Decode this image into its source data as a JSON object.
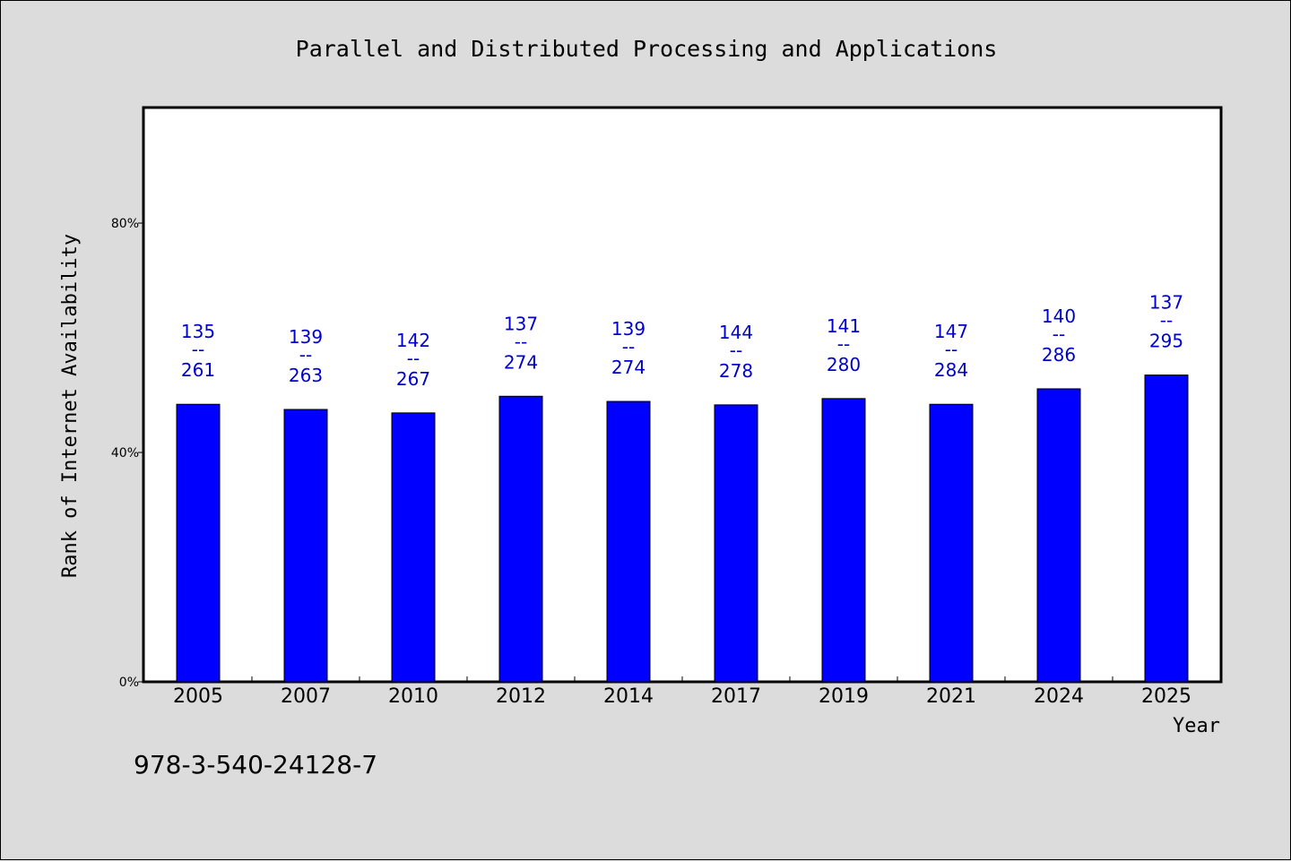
{
  "chart_data": {
    "type": "bar",
    "title": "Parallel and Distributed Processing and Applications",
    "xlabel": "Year",
    "ylabel": "Rank of Internet Availability",
    "ylim": [
      0,
      100
    ],
    "yticks": [
      {
        "value": 0,
        "label": "0%"
      },
      {
        "value": 40,
        "label": "40%"
      },
      {
        "value": 80,
        "label": "80%"
      }
    ],
    "categories": [
      "2005",
      "2007",
      "2010",
      "2012",
      "2014",
      "2017",
      "2019",
      "2021",
      "2024",
      "2025"
    ],
    "values": [
      48.4,
      47.5,
      46.9,
      49.8,
      48.9,
      48.3,
      49.4,
      48.4,
      51.1,
      53.5
    ],
    "data_labels": [
      {
        "rank": "135",
        "sep": "--",
        "total": "261"
      },
      {
        "rank": "139",
        "sep": "--",
        "total": "263"
      },
      {
        "rank": "142",
        "sep": "--",
        "total": "267"
      },
      {
        "rank": "137",
        "sep": "--",
        "total": "274"
      },
      {
        "rank": "139",
        "sep": "--",
        "total": "274"
      },
      {
        "rank": "144",
        "sep": "--",
        "total": "278"
      },
      {
        "rank": "141",
        "sep": "--",
        "total": "280"
      },
      {
        "rank": "147",
        "sep": "--",
        "total": "284"
      },
      {
        "rank": "140",
        "sep": "--",
        "total": "286"
      },
      {
        "rank": "137",
        "sep": "--",
        "total": "295"
      }
    ],
    "bar_color": "#0000ff",
    "label_color": "#0000cc",
    "background_color": "#dcdcdc",
    "plot_background_color": "#ffffff",
    "grid": false,
    "legend": "none"
  },
  "annotation": "978-3-540-24128-7"
}
